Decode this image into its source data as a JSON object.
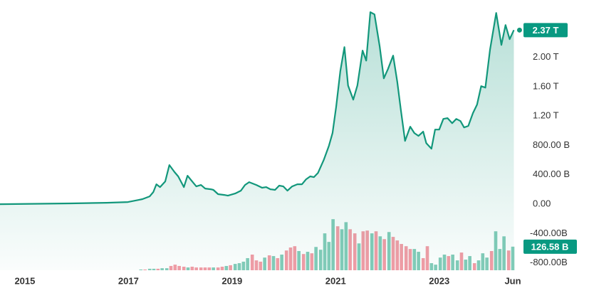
{
  "chart_data": {
    "type": "area",
    "series": [
      {
        "color": "#12977b",
        "x": [
          2014.52,
          2015.89,
          2016.58,
          2016.99,
          2017.2,
          2017.27,
          2017.41,
          2017.48,
          2017.54,
          2017.61,
          2017.71,
          2017.79,
          2017.89,
          2017.96,
          2018.07,
          2018.14,
          2018.23,
          2018.31,
          2018.4,
          2018.48,
          2018.59,
          2018.64,
          2018.73,
          2018.85,
          2018.92,
          2019.06,
          2019.17,
          2019.25,
          2019.33,
          2019.47,
          2019.58,
          2019.66,
          2019.74,
          2019.83,
          2019.91,
          2019.99,
          2020.07,
          2020.16,
          2020.26,
          2020.35,
          2020.43,
          2020.51,
          2020.58,
          2020.66,
          2020.77,
          2020.87,
          2020.94,
          2021.01,
          2021.09,
          2021.17,
          2021.24,
          2021.34,
          2021.42,
          2021.52,
          2021.59,
          2021.67,
          2021.75,
          2021.85,
          2021.93,
          2022.01,
          2022.11,
          2022.19,
          2022.26,
          2022.34,
          2022.44,
          2022.52,
          2022.6,
          2022.69,
          2022.75,
          2022.85,
          2022.92,
          2023.0,
          2023.08,
          2023.16,
          2023.25,
          2023.33,
          2023.41,
          2023.48,
          2023.56,
          2023.65,
          2023.73,
          2023.81,
          2023.89,
          2023.98,
          2024.1,
          2024.2,
          2024.28,
          2024.36,
          2024.44
        ],
        "values": [
          0,
          10,
          19,
          29,
          58,
          68,
          106,
          165,
          271,
          232,
          310,
          532,
          436,
          378,
          232,
          387,
          310,
          242,
          261,
          213,
          203,
          194,
          136,
          126,
          116,
          145,
          184,
          261,
          300,
          261,
          223,
          232,
          203,
          194,
          252,
          242,
          184,
          242,
          271,
          271,
          339,
          378,
          368,
          426,
          600,
          794,
          968,
          1326,
          1810,
          2139,
          1616,
          1423,
          1616,
          2091,
          1955,
          2614,
          2584,
          2149,
          1713,
          1839,
          2023,
          1665,
          1278,
          862,
          1055,
          968,
          929,
          987,
          832,
          755,
          1016,
          1016,
          1161,
          1171,
          1103,
          1161,
          1132,
          1045,
          1065,
          1239,
          1355,
          1607,
          1587,
          2101,
          2604,
          2168,
          2439,
          2246,
          2370
        ]
      }
    ],
    "price_label": {
      "value": 2370,
      "label": "2.37 T"
    },
    "volume": {
      "axis": "y2",
      "x": [
        2017.24,
        2017.32,
        2017.41,
        2017.49,
        2017.57,
        2017.65,
        2017.74,
        2017.82,
        2017.9,
        2017.98,
        2018.07,
        2018.15,
        2018.23,
        2018.31,
        2018.4,
        2018.48,
        2018.56,
        2018.64,
        2018.73,
        2018.81,
        2018.89,
        2018.97,
        2019.06,
        2019.14,
        2019.22,
        2019.3,
        2019.39,
        2019.47,
        2019.55,
        2019.63,
        2019.72,
        2019.8,
        2019.88,
        2019.96,
        2020.05,
        2020.13,
        2020.21,
        2020.29,
        2020.38,
        2020.46,
        2020.54,
        2020.62,
        2020.71,
        2020.79,
        2020.87,
        2020.95,
        2021.04,
        2021.12,
        2021.2,
        2021.28,
        2021.37,
        2021.45,
        2021.53,
        2021.61,
        2021.7,
        2021.78,
        2021.86,
        2021.94,
        2022.03,
        2022.11,
        2022.19,
        2022.27,
        2022.36,
        2022.44,
        2022.52,
        2022.6,
        2022.69,
        2022.77,
        2022.85,
        2022.93,
        2023.02,
        2023.1,
        2023.18,
        2023.26,
        2023.35,
        2023.43,
        2023.51,
        2023.59,
        2023.68,
        2023.76,
        2023.84,
        2023.92,
        2024.01,
        2024.09,
        2024.17,
        2024.25,
        2024.34,
        2024.42
      ],
      "values": [
        4,
        4,
        8,
        8,
        8,
        11,
        11,
        23,
        30,
        23,
        19,
        15,
        19,
        15,
        15,
        15,
        15,
        15,
        15,
        19,
        23,
        27,
        34,
        38,
        46,
        65,
        84,
        53,
        46,
        68,
        80,
        76,
        65,
        84,
        106,
        122,
        129,
        103,
        87,
        99,
        91,
        125,
        110,
        198,
        152,
        274,
        236,
        220,
        258,
        220,
        198,
        144,
        209,
        213,
        198,
        209,
        182,
        167,
        205,
        179,
        160,
        141,
        129,
        114,
        114,
        99,
        65,
        129,
        38,
        30,
        68,
        84,
        76,
        84,
        53,
        95,
        57,
        76,
        38,
        53,
        91,
        68,
        103,
        209,
        114,
        182,
        106,
        126.58
      ],
      "colors": [
        "#83ccb9",
        "#f39ca6",
        "#83ccb9",
        "#83ccb9",
        "#f39ca6",
        "#83ccb9",
        "#83ccb9",
        "#f39ca6",
        "#f39ca6",
        "#f39ca6",
        "#f39ca6",
        "#83ccb9",
        "#f39ca6",
        "#f39ca6",
        "#f39ca6",
        "#f39ca6",
        "#f39ca6",
        "#83ccb9",
        "#f39ca6",
        "#f39ca6",
        "#83ccb9",
        "#f39ca6",
        "#83ccb9",
        "#83ccb9",
        "#83ccb9",
        "#83ccb9",
        "#f39ca6",
        "#f39ca6",
        "#f39ca6",
        "#83ccb9",
        "#f39ca6",
        "#83ccb9",
        "#f39ca6",
        "#83ccb9",
        "#f39ca6",
        "#f39ca6",
        "#f39ca6",
        "#83ccb9",
        "#f39ca6",
        "#83ccb9",
        "#f39ca6",
        "#83ccb9",
        "#83ccb9",
        "#83ccb9",
        "#83ccb9",
        "#83ccb9",
        "#f39ca6",
        "#83ccb9",
        "#83ccb9",
        "#f39ca6",
        "#f39ca6",
        "#83ccb9",
        "#f39ca6",
        "#f39ca6",
        "#83ccb9",
        "#f39ca6",
        "#83ccb9",
        "#f39ca6",
        "#83ccb9",
        "#f39ca6",
        "#f39ca6",
        "#f39ca6",
        "#f39ca6",
        "#f39ca6",
        "#83ccb9",
        "#83ccb9",
        "#f39ca6",
        "#f39ca6",
        "#83ccb9",
        "#83ccb9",
        "#83ccb9",
        "#83ccb9",
        "#f39ca6",
        "#83ccb9",
        "#83ccb9",
        "#f39ca6",
        "#83ccb9",
        "#83ccb9",
        "#f39ca6",
        "#83ccb9",
        "#83ccb9",
        "#83ccb9",
        "#f39ca6",
        "#83ccb9",
        "#83ccb9",
        "#83ccb9",
        "#f39ca6",
        "#83ccb9"
      ],
      "value_label": {
        "value": 126.58,
        "label": "126.58 B"
      }
    },
    "xlim": [
      2014.52,
      2024.53
    ],
    "xticks": [
      2015,
      2017,
      2019,
      2021,
      2023,
      {
        "value": 2024.42,
        "label": "Jun"
      }
    ],
    "ylim": [
      -900,
      2780
    ],
    "yticks": [
      {
        "value": -800,
        "label": "-800.00B"
      },
      {
        "value": -400,
        "label": "-400.00B"
      },
      {
        "value": 0,
        "label": "0.00"
      },
      {
        "value": 400,
        "label": "400.00 B"
      },
      {
        "value": 800,
        "label": "800.00 B"
      },
      {
        "value": 1200,
        "label": "1.20 T"
      },
      {
        "value": 1600,
        "label": "1.60 T"
      },
      {
        "value": 2000,
        "label": "2.00 T"
      }
    ],
    "y2lim": [
      0,
      1450
    ],
    "label_color": "#089981"
  }
}
